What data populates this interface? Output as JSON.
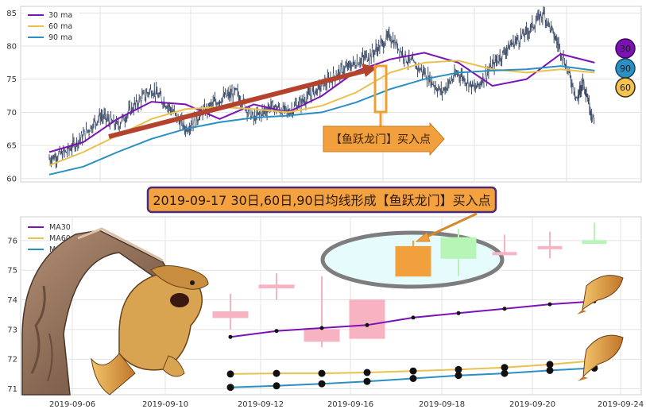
{
  "chart_data": [
    {
      "type": "line",
      "panel": "overview",
      "xlim": [
        0,
        100
      ],
      "ylim": [
        59.5,
        86
      ],
      "yticks": [
        60,
        65,
        70,
        75,
        80,
        85
      ],
      "grid": true,
      "legend_position": "top-left",
      "series": [
        {
          "name": "30 ma",
          "color": "#7b12b5",
          "x": [
            0,
            6,
            12,
            18,
            24,
            30,
            36,
            42,
            48,
            54,
            60,
            66,
            72,
            78,
            84,
            90,
            96
          ],
          "y": [
            64.0,
            65.5,
            69.0,
            71.6,
            71.2,
            69.0,
            71.2,
            70.0,
            72.5,
            76.2,
            78.0,
            79.0,
            77.5,
            74.0,
            75.0,
            78.8,
            77.5
          ]
        },
        {
          "name": "60 ma",
          "color": "#e8c14e",
          "x": [
            0,
            6,
            12,
            18,
            24,
            30,
            36,
            42,
            48,
            54,
            60,
            66,
            72,
            78,
            84,
            90,
            96
          ],
          "y": [
            62.0,
            64.0,
            66.5,
            69.0,
            70.5,
            70.8,
            70.5,
            70.0,
            71.0,
            73.0,
            76.0,
            77.5,
            77.8,
            76.5,
            76.0,
            76.5,
            76.0
          ]
        },
        {
          "name": "90 ma",
          "color": "#2a8fc2",
          "x": [
            0,
            6,
            12,
            18,
            24,
            30,
            36,
            42,
            48,
            54,
            60,
            66,
            72,
            78,
            84,
            90,
            96
          ],
          "y": [
            60.6,
            61.8,
            64.0,
            66.0,
            67.5,
            68.5,
            69.2,
            69.5,
            70.0,
            71.5,
            73.5,
            75.0,
            76.0,
            76.3,
            76.5,
            77.0,
            76.3
          ]
        }
      ],
      "price": {
        "color": "#3b4a66",
        "x": [
          0,
          3,
          6,
          9,
          12,
          15,
          18,
          21,
          24,
          27,
          30,
          33,
          36,
          39,
          42,
          45,
          48,
          51,
          54,
          57,
          60,
          63,
          66,
          69,
          72,
          75,
          78,
          81,
          84,
          87,
          90,
          93,
          94,
          96
        ],
        "y": [
          63.0,
          64.0,
          66.5,
          69.5,
          68.0,
          71.0,
          73.5,
          71.0,
          67.5,
          70.0,
          72.0,
          73.0,
          69.0,
          71.0,
          70.0,
          72.0,
          74.0,
          76.0,
          77.5,
          79.0,
          81.5,
          78.0,
          76.0,
          73.0,
          76.0,
          73.5,
          77.0,
          80.0,
          82.0,
          85.0,
          79.5,
          72.0,
          75.0,
          68.0
        ]
      },
      "badges": [
        "30",
        "90",
        "60"
      ],
      "annotation": "【鱼跃龙门】买入点"
    },
    {
      "type": "candlestick",
      "panel": "zoom",
      "x_labels": [
        "2019-09-06",
        "2019-09-10",
        "2019-09-12",
        "2019-09-16",
        "2019-09-18",
        "2019-09-20",
        "2019-09-24"
      ],
      "ylim": [
        70.8,
        76.8
      ],
      "yticks": [
        71,
        72,
        73,
        74,
        75,
        76
      ],
      "grid": true,
      "legend_position": "top-left",
      "candles": [
        {
          "open": 73.6,
          "close": 73.4,
          "high": 74.2,
          "low": 73.0
        },
        {
          "open": 74.5,
          "close": 74.4,
          "high": 74.9,
          "low": 74.0
        },
        {
          "open": 73.0,
          "close": 72.6,
          "high": 74.8,
          "low": 72.4
        },
        {
          "open": 74.0,
          "close": 72.7,
          "high": 74.0,
          "low": 72.7
        },
        {
          "open": 74.8,
          "close": 75.8,
          "high": 76.0,
          "low": 74.8
        },
        {
          "open": 75.4,
          "close": 76.1,
          "high": 76.4,
          "low": 74.8
        },
        {
          "open": 75.6,
          "close": 75.6,
          "high": 76.2,
          "low": 75.5
        },
        {
          "open": 75.8,
          "close": 75.8,
          "high": 76.3,
          "low": 75.4
        },
        {
          "open": 75.9,
          "close": 76.0,
          "high": 76.6,
          "low": 75.9
        }
      ],
      "series": [
        {
          "name": "MA30",
          "color": "#7b12b5",
          "values": [
            72.75,
            72.95,
            73.05,
            73.15,
            73.4,
            73.55,
            73.7,
            73.85,
            73.95
          ]
        },
        {
          "name": "MA60",
          "color": "#e8c14e",
          "values": [
            71.5,
            71.52,
            71.52,
            71.55,
            71.6,
            71.65,
            71.72,
            71.82,
            71.95
          ]
        },
        {
          "name": "MA90",
          "color": "#2a8fc2",
          "values": [
            71.05,
            71.1,
            71.17,
            71.25,
            71.35,
            71.45,
            71.52,
            71.62,
            71.7
          ]
        }
      ]
    }
  ],
  "headline": "2019-09-17 30日,60日,90日均线形成【鱼跃龙门】买入点"
}
